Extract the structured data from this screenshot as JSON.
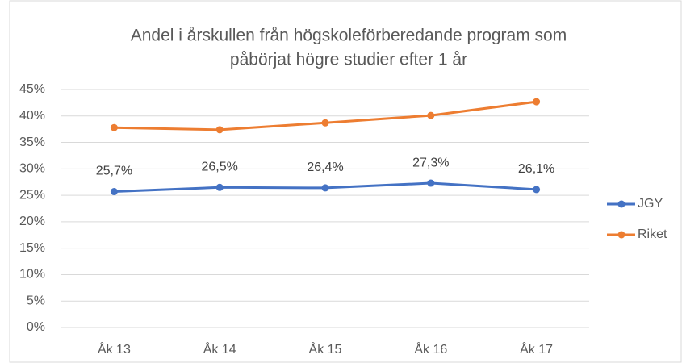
{
  "chart_data": {
    "type": "line",
    "title": [
      "Andel i årskullen från högskoleförberedande program som",
      "påbörjat högre studier efter 1 år"
    ],
    "categories": [
      "Åk 13",
      "Åk 14",
      "Åk 15",
      "Åk 16",
      "Åk 17"
    ],
    "series": [
      {
        "name": "JGY",
        "color": "#4472c4",
        "values": [
          25.7,
          26.5,
          26.4,
          27.3,
          26.1
        ],
        "value_labels": [
          "25,7%",
          "26,5%",
          "26,4%",
          "27,3%",
          "26,1%"
        ]
      },
      {
        "name": "Riket",
        "color": "#ed7d31",
        "values": [
          37.8,
          37.4,
          38.7,
          40.1,
          42.7
        ]
      }
    ],
    "ylim": [
      0,
      45
    ],
    "yticks": [
      {
        "value": 0,
        "label": "0%"
      },
      {
        "value": 5,
        "label": "5%"
      },
      {
        "value": 10,
        "label": "10%"
      },
      {
        "value": 15,
        "label": "15%"
      },
      {
        "value": 20,
        "label": "20%"
      },
      {
        "value": 25,
        "label": "25%"
      },
      {
        "value": 30,
        "label": "30%"
      },
      {
        "value": 35,
        "label": "35%"
      },
      {
        "value": 40,
        "label": "40%"
      },
      {
        "value": 45,
        "label": "45%"
      }
    ],
    "grid": true,
    "legend": "right"
  }
}
